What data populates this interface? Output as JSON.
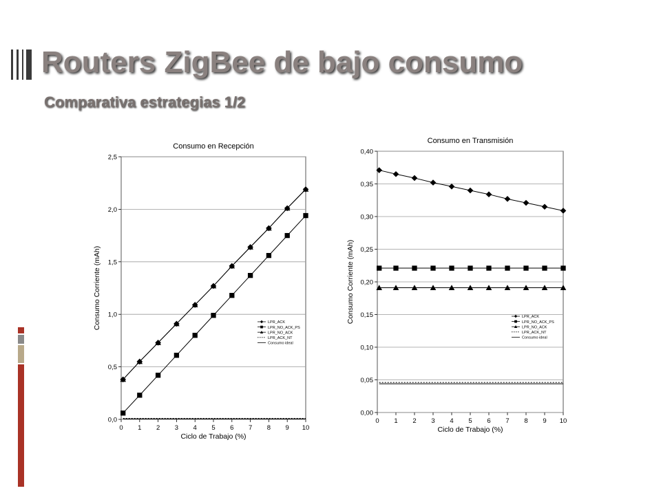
{
  "slide": {
    "title": "Routers ZigBee de bajo consumo",
    "subtitle": "Comparativa estrategias 1/2",
    "colors": {
      "title": "#8a817f",
      "accent_red": "#a93226",
      "accent_gray": "#8a8a8a",
      "accent_tan": "#b8a98a"
    }
  },
  "chart_data": [
    {
      "type": "line",
      "title": "Consumo en Recepción",
      "xlabel": "Ciclo de Trabajo (%)",
      "ylabel": "Consumo Corriente (mAh)",
      "xlim": [
        0,
        10
      ],
      "ylim": [
        0,
        2.5
      ],
      "x_ticks": [
        0,
        1,
        2,
        3,
        4,
        5,
        6,
        7,
        8,
        9,
        10
      ],
      "y_ticks": [
        0,
        0.5,
        1.0,
        1.5,
        2.0,
        2.5
      ],
      "y_tick_labels": [
        "0,0",
        "0,5",
        "1,0",
        "1,5",
        "2,0",
        "2,5"
      ],
      "grid": "horizontal",
      "legend_position": "right-middle",
      "x": [
        0.1,
        1,
        2,
        3,
        4,
        5,
        6,
        7,
        8,
        9,
        10
      ],
      "series": [
        {
          "name": "LPR_ACK",
          "marker": "diamond",
          "line": "solid",
          "values": [
            0.38,
            0.55,
            0.73,
            0.91,
            1.09,
            1.27,
            1.46,
            1.64,
            1.82,
            2.01,
            2.19
          ]
        },
        {
          "name": "LPR_NO_ACK_PS",
          "marker": "square",
          "line": "solid",
          "values": [
            0.06,
            0.23,
            0.42,
            0.61,
            0.8,
            0.99,
            1.18,
            1.37,
            1.56,
            1.75,
            1.94
          ]
        },
        {
          "name": "LPR_NO_ACK",
          "marker": "triangle",
          "line": "solid",
          "values": [
            0.38,
            0.55,
            0.73,
            0.91,
            1.09,
            1.27,
            1.46,
            1.64,
            1.82,
            2.01,
            2.19
          ]
        },
        {
          "name": "LPR_ACK_NT",
          "marker": "none",
          "line": "dashed",
          "values": [
            0.01,
            0.01,
            0.01,
            0.01,
            0.01,
            0.01,
            0.01,
            0.01,
            0.01,
            0.01,
            0.01
          ]
        },
        {
          "name": "Consumo ideal",
          "marker": "none",
          "line": "solid",
          "values": [
            0.005,
            0.005,
            0.005,
            0.005,
            0.005,
            0.005,
            0.005,
            0.005,
            0.005,
            0.005,
            0.005
          ]
        }
      ]
    },
    {
      "type": "line",
      "title": "Consumo en Transmisión",
      "xlabel": "Ciclo de Trabajo (%)",
      "ylabel": "Consumo Corriente (mAh)",
      "xlim": [
        0,
        10
      ],
      "ylim": [
        0,
        0.4
      ],
      "x_ticks": [
        0,
        1,
        2,
        3,
        4,
        5,
        6,
        7,
        8,
        9,
        10
      ],
      "y_ticks": [
        0,
        0.05,
        0.1,
        0.15,
        0.2,
        0.25,
        0.3,
        0.35,
        0.4
      ],
      "y_tick_labels": [
        "0,00",
        "0,05",
        "0,10",
        "0,15",
        "0,20",
        "0,25",
        "0,30",
        "0,35",
        "0,40"
      ],
      "grid": "horizontal",
      "legend_position": "right-middle",
      "x": [
        0.1,
        1,
        2,
        3,
        4,
        5,
        6,
        7,
        8,
        9,
        10
      ],
      "series": [
        {
          "name": "LPR_ACK",
          "marker": "diamond",
          "line": "solid",
          "values": [
            0.371,
            0.365,
            0.359,
            0.352,
            0.346,
            0.34,
            0.334,
            0.327,
            0.321,
            0.315,
            0.309
          ]
        },
        {
          "name": "LPR_NO_ACK_PS",
          "marker": "square",
          "line": "solid",
          "values": [
            0.221,
            0.221,
            0.221,
            0.221,
            0.221,
            0.221,
            0.221,
            0.221,
            0.221,
            0.221,
            0.221
          ]
        },
        {
          "name": "LPR_NO_ACK",
          "marker": "triangle",
          "line": "solid",
          "values": [
            0.191,
            0.191,
            0.191,
            0.191,
            0.191,
            0.191,
            0.191,
            0.191,
            0.191,
            0.191,
            0.191
          ]
        },
        {
          "name": "LPR_ACK_NT",
          "marker": "none",
          "line": "dashed",
          "values": [
            0.046,
            0.046,
            0.046,
            0.046,
            0.046,
            0.046,
            0.046,
            0.046,
            0.046,
            0.046,
            0.046
          ]
        },
        {
          "name": "Consumo ideal",
          "marker": "none",
          "line": "solid",
          "values": [
            0.044,
            0.044,
            0.044,
            0.044,
            0.044,
            0.044,
            0.044,
            0.044,
            0.044,
            0.044,
            0.044
          ]
        }
      ]
    }
  ]
}
